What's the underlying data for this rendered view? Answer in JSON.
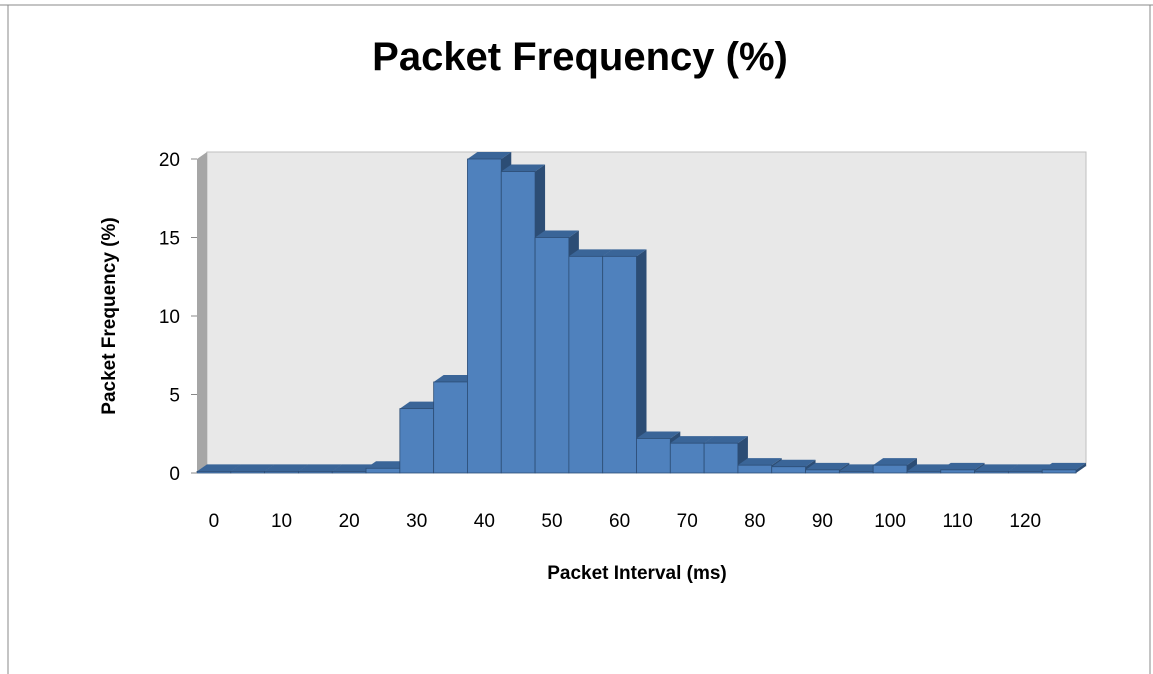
{
  "chart_data": {
    "type": "bar",
    "title": "Packet Frequency (%)",
    "xlabel": "Packet Interval (ms)",
    "ylabel": "Packet Frequency (%)",
    "ylim": [
      0,
      20
    ],
    "yticks": [
      "0",
      "5",
      "10",
      "15",
      "20"
    ],
    "xticks": [
      "0",
      "10",
      "20",
      "30",
      "40",
      "50",
      "60",
      "70",
      "80",
      "90",
      "100",
      "110",
      "120"
    ],
    "categories": [
      0,
      5,
      10,
      15,
      20,
      25,
      30,
      35,
      40,
      45,
      50,
      55,
      60,
      65,
      70,
      75,
      80,
      85,
      90,
      95,
      100,
      105,
      110,
      115,
      120,
      125
    ],
    "values": [
      0.1,
      0.1,
      0.1,
      0.1,
      0.1,
      0.3,
      4.1,
      5.8,
      20.0,
      19.2,
      15.0,
      13.8,
      13.8,
      2.2,
      1.9,
      1.9,
      0.5,
      0.4,
      0.2,
      0.1,
      0.5,
      0.1,
      0.2,
      0.1,
      0.1,
      0.2
    ],
    "grid": false,
    "legend": "none",
    "colors": {
      "bar_front": "#4f81bd",
      "bar_side": "#2c4d75",
      "bar_top": "#3a6598",
      "wall": "#e8e8e8",
      "wall_side": "#a6a6a6",
      "floor": "#c8c8c8"
    }
  }
}
